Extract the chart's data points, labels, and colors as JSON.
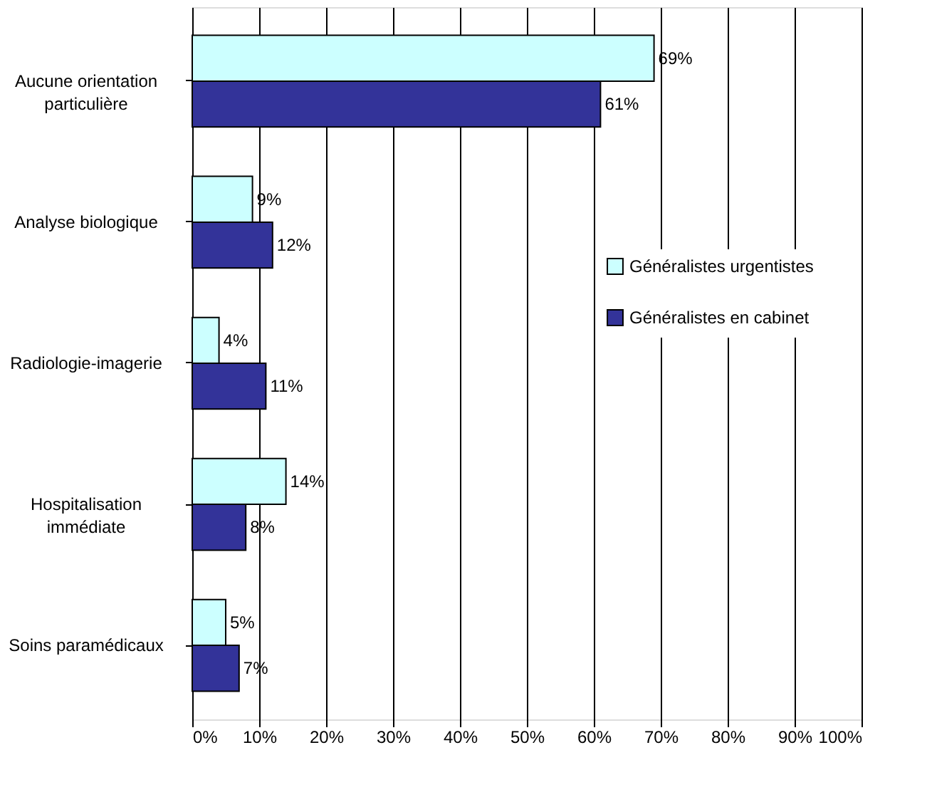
{
  "chart_data": {
    "type": "bar",
    "orientation": "horizontal",
    "categories": [
      "Aucune orientation particulière",
      "Analyse biologique",
      "Radiologie-imagerie",
      "Hospitalisation immédiate",
      "Soins paramédicaux"
    ],
    "series": [
      {
        "name": "Généralistes urgentistes",
        "color": "#ccffff",
        "values": [
          69,
          9,
          4,
          14,
          5
        ],
        "value_labels": [
          "69%",
          "9%",
          "4%",
          "14%",
          "5%"
        ]
      },
      {
        "name": "Généralistes en cabinet",
        "color": "#333399",
        "values": [
          61,
          12,
          11,
          8,
          7
        ],
        "value_labels": [
          "61%",
          "12%",
          "11%",
          "8%",
          "7%"
        ]
      }
    ],
    "xlim": [
      0,
      100
    ],
    "xticks": [
      {
        "value": 0,
        "label": "0%"
      },
      {
        "value": 10,
        "label": "10%"
      },
      {
        "value": 20,
        "label": "20%"
      },
      {
        "value": 30,
        "label": "30%"
      },
      {
        "value": 40,
        "label": "40%"
      },
      {
        "value": 50,
        "label": "50%"
      },
      {
        "value": 60,
        "label": "60%"
      },
      {
        "value": 70,
        "label": "70%"
      },
      {
        "value": 80,
        "label": "80%"
      },
      {
        "value": 90,
        "label": "90%"
      },
      {
        "value": 100,
        "label": "100%"
      }
    ],
    "grid": "x",
    "legend": "right"
  }
}
